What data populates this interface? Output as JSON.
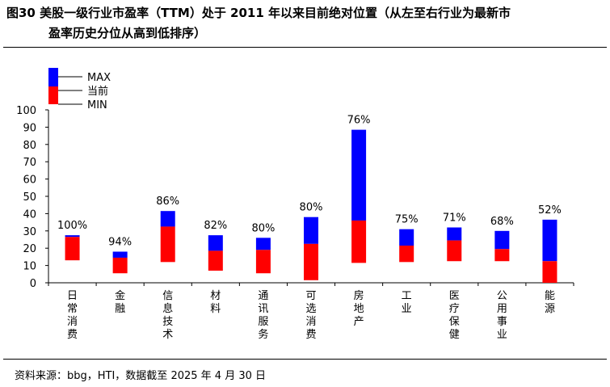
{
  "title": {
    "line1": "图30 美股一级行业市盈率（TTM）处于 2011 年以来目前绝对位置（从左至右行业为最新市",
    "line2": "盈率历史分位从高到低排序）"
  },
  "source": "资料来源：bbg，HTI，数据截至 2025 年 4 月 30 日",
  "colors": {
    "max": "#0000ff",
    "current": "#ff0000"
  },
  "chart_data": {
    "type": "bar",
    "subtype": "floating-range",
    "ylim": [
      0,
      100
    ],
    "yticks": [
      0,
      10,
      20,
      30,
      40,
      50,
      60,
      70,
      80,
      90,
      100
    ],
    "legend": [
      "MAX",
      "当前",
      "MIN"
    ],
    "categories": [
      "日常消费",
      "金融",
      "信息技术",
      "材料",
      "通讯服务",
      "可选消费",
      "房地产",
      "工业",
      "医疗保健",
      "公用事业",
      "能源"
    ],
    "min": [
      13,
      5.5,
      12,
      7,
      5.5,
      1.5,
      11.5,
      12,
      12.5,
      12.5,
      0
    ],
    "current": [
      26.5,
      14.5,
      32.5,
      18.5,
      19,
      22.5,
      36,
      21.5,
      24.5,
      19.5,
      12.5
    ],
    "max": [
      27.5,
      18,
      41.5,
      27.5,
      26,
      38,
      88.5,
      31,
      32,
      30,
      36.5
    ],
    "percentile_labels": [
      "100%",
      "94%",
      "86%",
      "82%",
      "80%",
      "80%",
      "76%",
      "75%",
      "71%",
      "68%",
      "52%"
    ]
  }
}
